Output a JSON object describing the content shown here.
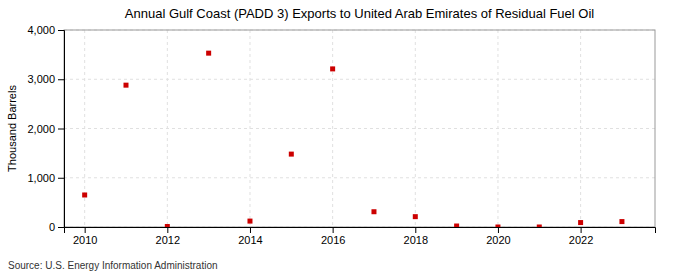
{
  "chart_data": {
    "type": "scatter",
    "title": "Annual Gulf Coast (PADD 3) Exports to United Arab Emirates of Residual Fuel Oil",
    "ylabel": "Thousand Barrels",
    "annotations": [
      "Source: U.S. Energy Information Administration"
    ],
    "x": [
      2010,
      2011,
      2012,
      2013,
      2014,
      2015,
      2016,
      2017,
      2018,
      2019,
      2020,
      2021,
      2022,
      2023
    ],
    "values": [
      650,
      2880,
      10,
      3530,
      120,
      1480,
      3210,
      310,
      210,
      20,
      0,
      0,
      90,
      110
    ],
    "color": "#cc0000",
    "marker": "square",
    "xlim": [
      2009.5,
      2023.8
    ],
    "xticks": [
      2010,
      2012,
      2014,
      2016,
      2018,
      2020,
      2022
    ],
    "ylim": [
      0,
      4000
    ],
    "yticks": [
      0,
      {
        "value": 1000,
        "label": "1,000"
      },
      {
        "value": 2000,
        "label": "2,000"
      },
      {
        "value": 3000,
        "label": "3,000"
      },
      {
        "value": 4000,
        "label": "4,000"
      }
    ],
    "grid": true
  }
}
